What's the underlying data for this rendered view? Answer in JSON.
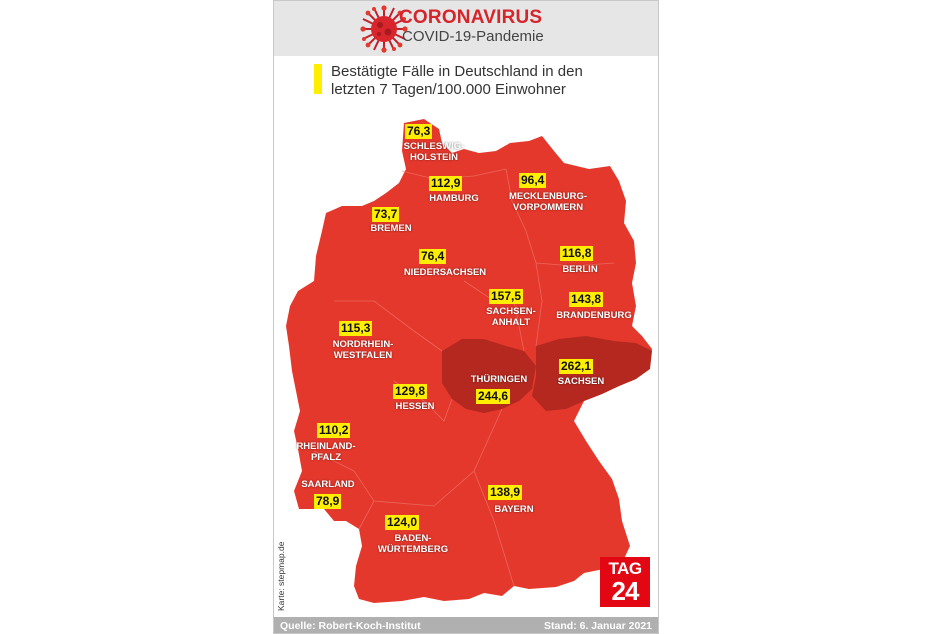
{
  "header": {
    "title": "CORONAVIRUS",
    "subtitle": "COVID-19-Pandemie",
    "heading_line1": "Bestätigte Fälle in Deutschland in den",
    "heading_line2": "letzten 7 Tagen/100.000 Einwohner"
  },
  "colors": {
    "base_region": "#e5382c",
    "high_region": "#b5281f",
    "value_box": "#ffee00",
    "brand": "#d6242b"
  },
  "states": [
    {
      "id": "sh",
      "value": "76,3",
      "label_lines": [
        "SCHLESWIG-",
        "HOLSTEIN"
      ]
    },
    {
      "id": "hh",
      "value": "112,9",
      "label_lines": [
        "HAMBURG"
      ]
    },
    {
      "id": "mv",
      "value": "96,4",
      "label_lines": [
        "MECKLENBURG-",
        "VORPOMMERN"
      ]
    },
    {
      "id": "hb",
      "value": "73,7",
      "label_lines": [
        "BREMEN"
      ]
    },
    {
      "id": "ni",
      "value": "76,4",
      "label_lines": [
        "NIEDERSACHSEN"
      ]
    },
    {
      "id": "be",
      "value": "116,8",
      "label_lines": [
        "BERLIN"
      ]
    },
    {
      "id": "st",
      "value": "157,5",
      "label_lines": [
        "SACHSEN-",
        "ANHALT"
      ]
    },
    {
      "id": "bb",
      "value": "143,8",
      "label_lines": [
        "BRANDENBURG"
      ]
    },
    {
      "id": "nw",
      "value": "115,3",
      "label_lines": [
        "NORDRHEIN-",
        "WESTFALEN"
      ]
    },
    {
      "id": "th",
      "value": "244,6",
      "label_lines": [
        "THÜRINGEN"
      ]
    },
    {
      "id": "sn",
      "value": "262,1",
      "label_lines": [
        "SACHSEN"
      ]
    },
    {
      "id": "he",
      "value": "129,8",
      "label_lines": [
        "HESSEN"
      ]
    },
    {
      "id": "rp",
      "value": "110,2",
      "label_lines": [
        "RHEINLAND-",
        "PFALZ"
      ]
    },
    {
      "id": "sl",
      "value": "78,9",
      "label_lines": [
        "SAARLAND"
      ]
    },
    {
      "id": "by",
      "value": "138,9",
      "label_lines": [
        "BAYERN"
      ]
    },
    {
      "id": "bw",
      "value": "124,0",
      "label_lines": [
        "BADEN-",
        "WÜRTEMBERG"
      ]
    }
  ],
  "map_credit": "Karte: stepmap.de",
  "logo": {
    "top": "TAG",
    "bottom": "24"
  },
  "footer": {
    "source": "Quelle: Robert-Koch-Institut",
    "date": "Stand: 6. Januar 2021"
  }
}
